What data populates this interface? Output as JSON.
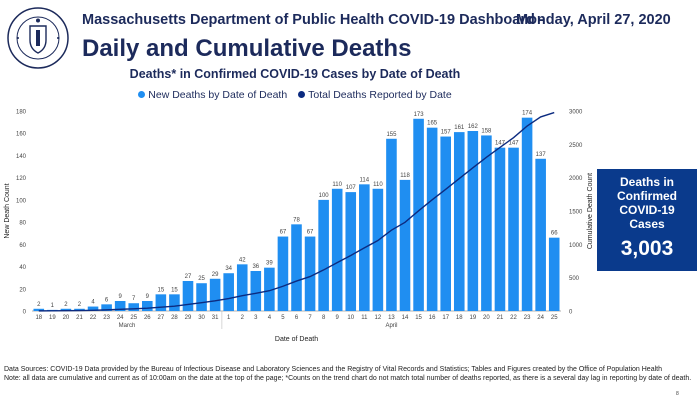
{
  "header": {
    "agency": "Massachusetts Department of Public Health COVID-19 Dashboard -",
    "date": "Monday, April 27, 2020",
    "title": "Daily and Cumulative Deaths",
    "seal_text": "COMMONWEALTH OF MASSACHUSETTS · DEPARTMENT OF PUBLIC HEALTH"
  },
  "colors": {
    "bar": "#1f8ef1",
    "line": "#0c2b80",
    "box": "#0a3a8c",
    "title": "#1c2a5b"
  },
  "summary": {
    "label_1": "Deaths in",
    "label_2": "Confirmed",
    "label_3": "COVID-19 Cases",
    "value": "3,003"
  },
  "footnote": {
    "line1": "Data Sources: COVID-19 Data provided by the Bureau of Infectious Disease and Laboratory Sciences and the Registry of Vital Records and Statistics; Tables and Figures created by the Office of Population Health",
    "line2": "Note: all data are cumulative and current as of 10:00am on the date at the top of the page; *Counts on the trend chart do not match total number of deaths reported, as there is a several day lag in reporting by date of death."
  },
  "page_number": "8",
  "chart_data": {
    "type": "bar",
    "title": "Deaths* in Confirmed COVID-19 Cases by Date of Death",
    "xlabel": "Date of Death",
    "ylabel": "New Death Count",
    "y2label": "Cumulative Death Count",
    "ylim": [
      0,
      180
    ],
    "y2lim": [
      0,
      3000
    ],
    "yticks": [
      0,
      20,
      40,
      60,
      80,
      100,
      120,
      140,
      160,
      180
    ],
    "y2ticks": [
      0,
      500,
      1000,
      1500,
      2000,
      2500,
      3000
    ],
    "month_labels": [
      {
        "label": "March",
        "start": 0,
        "end": 13
      },
      {
        "label": "April",
        "start": 14,
        "end": 38
      }
    ],
    "categories": [
      "18",
      "19",
      "20",
      "21",
      "22",
      "23",
      "24",
      "25",
      "26",
      "27",
      "28",
      "29",
      "30",
      "31",
      "1",
      "2",
      "3",
      "4",
      "5",
      "6",
      "7",
      "8",
      "9",
      "10",
      "11",
      "12",
      "13",
      "14",
      "15",
      "16",
      "17",
      "18",
      "19",
      "20",
      "21",
      "22",
      "23",
      "24",
      "25"
    ],
    "series": [
      {
        "name": "New Deaths by Date of Death",
        "type": "bar",
        "values": [
          2,
          1,
          2,
          2,
          4,
          6,
          9,
          7,
          9,
          15,
          15,
          27,
          25,
          29,
          34,
          42,
          36,
          39,
          67,
          78,
          67,
          100,
          110,
          107,
          114,
          110,
          155,
          118,
          173,
          165,
          157,
          161,
          162,
          158,
          147,
          147,
          174,
          137,
          66
        ]
      },
      {
        "name": "Total Deaths Reported by Date",
        "type": "line",
        "axis": "y2",
        "values": [
          2,
          3,
          5,
          7,
          11,
          17,
          26,
          33,
          42,
          57,
          72,
          99,
          124,
          153,
          187,
          229,
          265,
          304,
          371,
          449,
          516,
          616,
          726,
          833,
          947,
          1057,
          1212,
          1330,
          1503,
          1668,
          1825,
          1986,
          2148,
          2306,
          2453,
          2600,
          2774,
          2911,
          2977
        ]
      }
    ],
    "legend_position": "top-center",
    "grid": false
  }
}
